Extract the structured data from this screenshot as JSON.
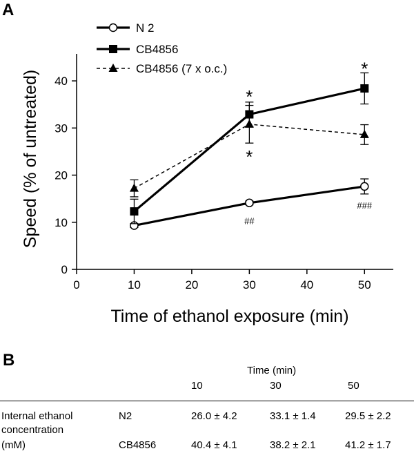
{
  "chart_data": {
    "type": "line",
    "panel_label": "A",
    "xlabel": "Time of ethanol exposure (min)",
    "ylabel": "Speed (% of untreated)",
    "xlim": [
      0,
      55
    ],
    "ylim": [
      0,
      45
    ],
    "xticks": [
      0,
      10,
      20,
      30,
      40,
      50
    ],
    "yticks": [
      0,
      10,
      20,
      30,
      40
    ],
    "grid": false,
    "legend_position": "top-left",
    "series": [
      {
        "name": "N 2",
        "x": [
          10,
          30,
          50
        ],
        "y": [
          9.3,
          14.1,
          17.6
        ],
        "err": [
          0.4,
          0.4,
          1.6
        ],
        "marker": "open-circle",
        "line": "solid",
        "color": "#000000"
      },
      {
        "name": "CB4856",
        "x": [
          10,
          30,
          50
        ],
        "y": [
          12.3,
          32.9,
          38.4
        ],
        "err": [
          2.6,
          2.6,
          3.3
        ],
        "marker": "filled-square",
        "line": "solid",
        "color": "#000000"
      },
      {
        "name": "CB4856 (7 x o.c.)",
        "x": [
          10,
          30,
          50
        ],
        "y": [
          17.2,
          30.8,
          28.6
        ],
        "err": [
          1.8,
          4.0,
          2.1
        ],
        "marker": "filled-triangle",
        "line": "dashed",
        "color": "#000000"
      }
    ],
    "annotations": [
      {
        "text": "*",
        "x": 30,
        "y": 37.2,
        "series": "CB4856"
      },
      {
        "text": "*",
        "x": 30,
        "y": 24.5,
        "series": "CB4856 (7 x o.c.)"
      },
      {
        "text": "*",
        "x": 50,
        "y": 43.2,
        "series": "CB4856"
      },
      {
        "text": "##",
        "x": 30,
        "y": 10.3,
        "series": "N 2"
      },
      {
        "text": "###",
        "x": 50,
        "y": 13.6,
        "series": "N 2"
      }
    ]
  },
  "table": {
    "panel_label": "B",
    "column_group_header": "Time (min)",
    "columns": [
      "10",
      "30",
      "50"
    ],
    "row_label": [
      "Internal ethanol",
      "concentration",
      "(mM)"
    ],
    "rows": [
      {
        "strain": "N2",
        "values": [
          "26.0 ± 4.2",
          "33.1 ± 1.4",
          "29.5 ± 2.2"
        ]
      },
      {
        "strain": "CB4856",
        "values": [
          "40.4 ± 4.1",
          "38.2 ± 2.1",
          "41.2 ± 1.7"
        ]
      }
    ]
  }
}
